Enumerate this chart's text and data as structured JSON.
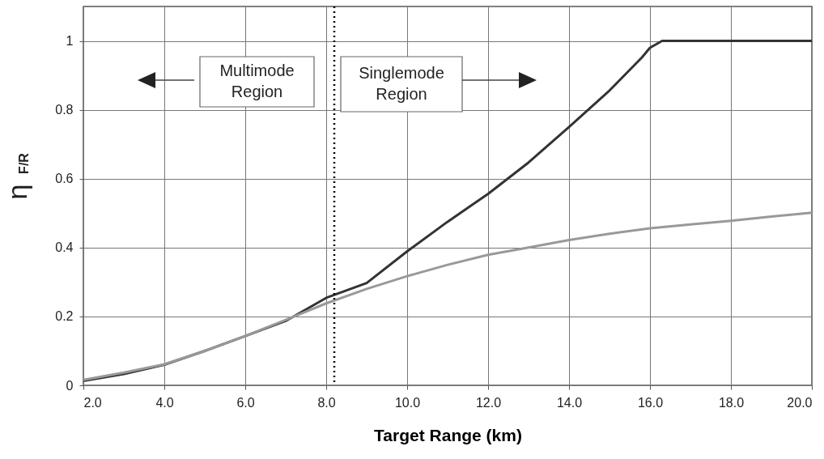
{
  "chart_data": {
    "type": "line",
    "xlabel": "Target Range (km)",
    "ylabel": "η$_{F/R}$",
    "xlim": [
      2,
      20
    ],
    "xticks": [
      {
        "value": 2,
        "label": "2.0"
      },
      {
        "value": 4,
        "label": "4.0"
      },
      {
        "value": 6,
        "label": "6.0"
      },
      {
        "value": 8,
        "label": "8.0"
      },
      {
        "value": 10,
        "label": "10.0"
      },
      {
        "value": 12,
        "label": "12.0"
      },
      {
        "value": 14,
        "label": "14.0"
      },
      {
        "value": 16,
        "label": "16.0"
      },
      {
        "value": 18,
        "label": "18.0"
      },
      {
        "value": 20,
        "label": "20.0"
      }
    ],
    "ylim": [
      0,
      1.1
    ],
    "yticks": [
      0,
      0.2,
      0.4,
      0.6,
      0.8,
      1
    ],
    "grid": true,
    "marker": "none",
    "line_style": "solid",
    "series": [
      {
        "color": "#333333",
        "x": [
          2,
          3,
          4,
          5,
          6,
          7,
          8,
          9,
          10,
          11,
          12,
          13,
          14,
          15,
          15.8,
          16,
          16.3,
          17,
          18,
          19,
          20
        ],
        "values": [
          0.013,
          0.033,
          0.06,
          0.1,
          0.143,
          0.187,
          0.254,
          0.297,
          0.389,
          0.475,
          0.556,
          0.647,
          0.75,
          0.856,
          0.952,
          0.98,
          1,
          1,
          1,
          1,
          1
        ]
      },
      {
        "color": "#999999",
        "x": [
          2,
          3,
          4,
          5,
          6,
          7,
          8,
          9,
          10,
          11,
          12,
          13,
          14,
          15,
          16,
          17,
          18,
          19,
          20
        ],
        "values": [
          0.016,
          0.037,
          0.061,
          0.1,
          0.143,
          0.19,
          0.238,
          0.28,
          0.317,
          0.35,
          0.379,
          0.4,
          0.422,
          0.44,
          0.456,
          0.467,
          0.478,
          0.49,
          0.501
        ]
      }
    ],
    "ref_lines": [
      {
        "axis": "x",
        "value": 8.2,
        "line_style": "dotted",
        "color": "#000000"
      }
    ],
    "annotations": [
      "Multimode Region",
      "Singlemode Region"
    ]
  }
}
